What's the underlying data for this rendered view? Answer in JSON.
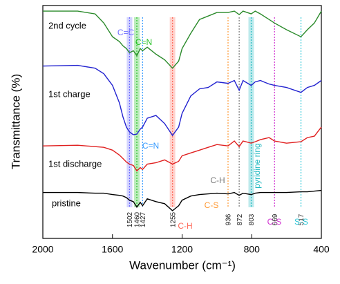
{
  "chart_data": {
    "type": "line",
    "xlabel": "Wavenumber (cm⁻¹)",
    "ylabel": "Transmittance (%)",
    "xlim": [
      2000,
      400
    ],
    "xticks": [
      2000,
      1600,
      1200,
      800,
      400
    ],
    "ylim": [
      0,
      100
    ],
    "x": [
      2000,
      1800,
      1700,
      1650,
      1600,
      1560,
      1540,
      1520,
      1502,
      1480,
      1460,
      1440,
      1427,
      1400,
      1350,
      1300,
      1255,
      1220,
      1200,
      1150,
      1100,
      1050,
      1000,
      936,
      900,
      872,
      850,
      803,
      780,
      750,
      700,
      669,
      600,
      517,
      480,
      440,
      400
    ],
    "series": [
      {
        "name": "pristine",
        "color": "#000000",
        "values": [
          19.7,
          19.7,
          19.4,
          19.4,
          18.8,
          18.5,
          18.2,
          17.5,
          16.4,
          15.8,
          13.4,
          15.5,
          14.0,
          17.0,
          15.8,
          14.9,
          11.9,
          14.0,
          16.4,
          18.2,
          18.8,
          19.1,
          19.4,
          19.1,
          19.7,
          18.5,
          19.4,
          18.8,
          19.4,
          19.7,
          19.7,
          19.7,
          19.7,
          20.0,
          20.0,
          20.3,
          20.6
        ]
      },
      {
        "name": "1st discharge",
        "color": "#e02020",
        "values": [
          39.7,
          40.0,
          39.4,
          39.1,
          37.9,
          35.8,
          34.3,
          32.8,
          31.9,
          31.3,
          29.0,
          30.4,
          29.6,
          31.9,
          32.5,
          33.7,
          31.9,
          33.1,
          35.5,
          36.7,
          37.9,
          39.1,
          40.3,
          39.7,
          41.8,
          39.4,
          41.8,
          40.9,
          41.5,
          42.4,
          43.3,
          41.8,
          40.9,
          41.5,
          43.3,
          43.9,
          47.8
        ]
      },
      {
        "name": "1st charge",
        "color": "#2222d0",
        "values": [
          74.0,
          74.3,
          73.1,
          70.7,
          65.7,
          58.2,
          52.2,
          47.8,
          45.7,
          44.5,
          44.8,
          46.9,
          47.8,
          51.6,
          52.8,
          49.3,
          44.2,
          47.8,
          53.7,
          61.2,
          64.2,
          64.8,
          67.2,
          66.6,
          67.8,
          63.6,
          67.8,
          65.7,
          67.2,
          67.8,
          66.3,
          65.7,
          64.8,
          62.7,
          64.8,
          65.7,
          67.8
        ]
      },
      {
        "name": "2nd cycle",
        "color": "#2a8a2a",
        "values": [
          97.6,
          97.6,
          96.4,
          92.5,
          86.6,
          84.5,
          82.7,
          81.5,
          79.7,
          80.6,
          78.5,
          81.5,
          80.6,
          82.1,
          79.1,
          76.7,
          73.1,
          76.1,
          81.5,
          88.1,
          94.0,
          95.5,
          97.0,
          97.0,
          97.6,
          96.1,
          97.6,
          96.4,
          97.6,
          96.4,
          94.0,
          92.5,
          89.6,
          86.6,
          89.6,
          92.5,
          97.6
        ]
      }
    ],
    "markers": [
      {
        "x": 1502,
        "color": "#6f6fff",
        "label": "C=C",
        "shaded": true
      },
      {
        "x": 1460,
        "color": "#22c022",
        "label": "C=N",
        "shaded": true
      },
      {
        "x": 1427,
        "color": "#3399ff",
        "label": "C=N",
        "shaded": false
      },
      {
        "x": 1255,
        "color": "#ff6a5a",
        "label": "C-H",
        "shaded": true
      },
      {
        "x": 936,
        "color": "#ff9933",
        "label": "C-S",
        "shaded": false
      },
      {
        "x": 872,
        "color": "#777777",
        "label": "C-H",
        "shaded": false
      },
      {
        "x": 803,
        "color": "#20b8c0",
        "label": "pyridine ring",
        "shaded": true
      },
      {
        "x": 669,
        "color": "#d030d0",
        "label": "C-S",
        "shaded": false
      },
      {
        "x": 517,
        "color": "#30c8d8",
        "label": "S-S",
        "shaded": false
      }
    ]
  }
}
